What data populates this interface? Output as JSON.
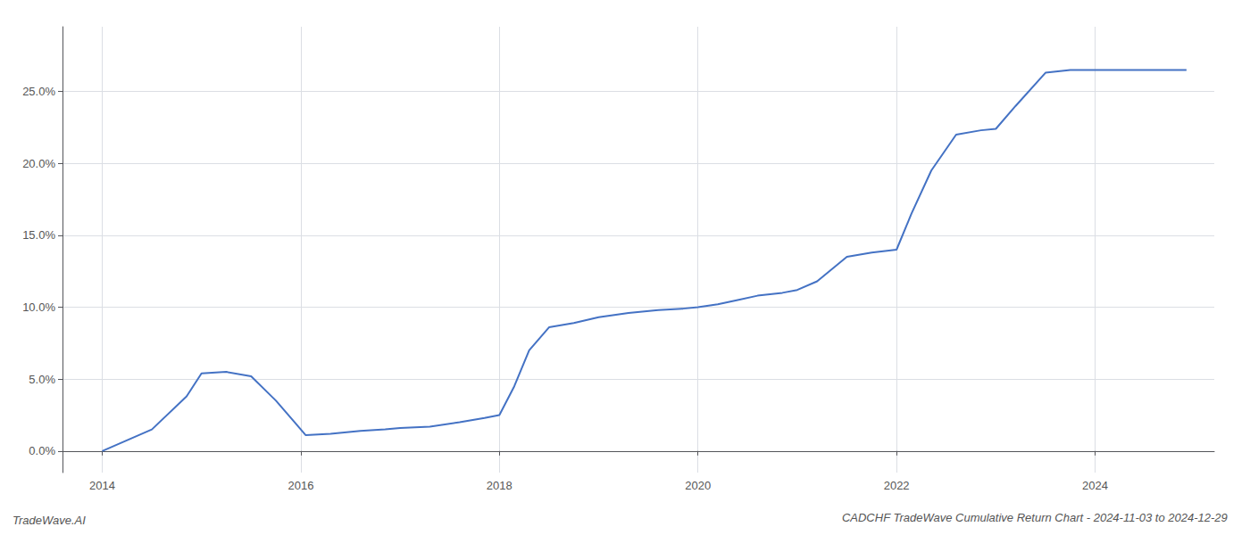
{
  "chart_data": {
    "type": "line",
    "title": "CADCHF TradeWave Cumulative Return Chart - 2024-11-03 to 2024-12-29",
    "annotations": [
      "TradeWave.AI"
    ],
    "x": [
      2014.0,
      2014.5,
      2014.85,
      2015.0,
      2015.25,
      2015.5,
      2015.75,
      2015.95,
      2016.05,
      2016.3,
      2016.6,
      2016.85,
      2017.0,
      2017.3,
      2017.6,
      2017.85,
      2018.0,
      2018.15,
      2018.3,
      2018.5,
      2018.75,
      2019.0,
      2019.3,
      2019.6,
      2019.85,
      2020.0,
      2020.2,
      2020.4,
      2020.6,
      2020.85,
      2021.0,
      2021.2,
      2021.5,
      2021.75,
      2022.0,
      2022.15,
      2022.35,
      2022.6,
      2022.85,
      2023.0,
      2023.2,
      2023.5,
      2023.75,
      2024.0,
      2024.5,
      2024.92
    ],
    "values": [
      0.0,
      1.5,
      3.8,
      5.4,
      5.5,
      5.2,
      3.5,
      1.9,
      1.1,
      1.2,
      1.4,
      1.5,
      1.6,
      1.7,
      2.0,
      2.3,
      2.5,
      4.5,
      7.0,
      8.6,
      8.9,
      9.3,
      9.6,
      9.8,
      9.9,
      10.0,
      10.2,
      10.5,
      10.8,
      11.0,
      11.2,
      11.8,
      13.5,
      13.8,
      14.0,
      16.5,
      19.5,
      22.0,
      22.3,
      22.4,
      24.0,
      26.3,
      26.5,
      26.5,
      26.5,
      26.5
    ],
    "color": "#4472c4",
    "xlim": [
      2013.6,
      2025.2
    ],
    "xticks": [
      2014,
      2016,
      2018,
      2020,
      2022,
      2024
    ],
    "ylim": [
      -1.5,
      29.5
    ],
    "yticks": [
      {
        "value": 0,
        "label": "0.0%"
      },
      {
        "value": 5,
        "label": "5.0%"
      },
      {
        "value": 10,
        "label": "10.0%"
      },
      {
        "value": 15,
        "label": "15.0%"
      },
      {
        "value": 20,
        "label": "20.0%"
      },
      {
        "value": 25,
        "label": "25.0%"
      }
    ],
    "grid": true
  }
}
